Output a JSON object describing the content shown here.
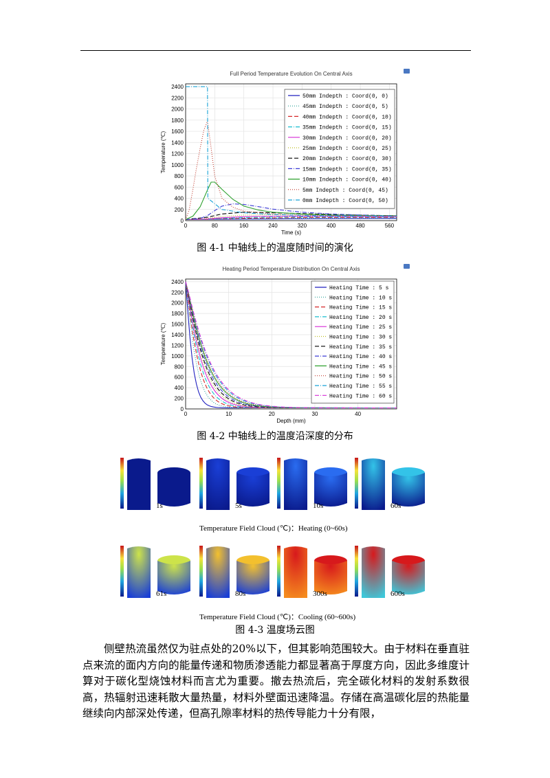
{
  "figure1": {
    "caption": "图 4-1  中轴线上的温度随时间的演化",
    "chart_data": {
      "type": "line",
      "title": "Full Period Temperature Evolution On Central Axis",
      "xlabel": "Time (s)",
      "ylabel": "Temperature (℃)",
      "xlim": [
        0,
        580
      ],
      "ylim": [
        0,
        2450
      ],
      "xticks": [
        0,
        80,
        160,
        240,
        320,
        400,
        480,
        560
      ],
      "yticks": [
        0,
        200,
        400,
        600,
        800,
        1000,
        1200,
        1400,
        1600,
        1800,
        2000,
        2200,
        2400
      ],
      "grid": true,
      "legend_position": "top-right",
      "series": [
        {
          "name": "50mm Indepth : Coord(0, 0)",
          "color": "#1f1fbf",
          "dash": "",
          "x": [
            0,
            60,
            100,
            160,
            240,
            320,
            400,
            480,
            580
          ],
          "y": [
            20,
            22,
            24,
            27,
            30,
            33,
            36,
            38,
            40
          ]
        },
        {
          "name": "45mm Indepth : Coord(0, 5)",
          "color": "#2aa198",
          "dash": "1,2",
          "x": [
            0,
            60,
            100,
            160,
            240,
            320,
            400,
            480,
            580
          ],
          "y": [
            20,
            24,
            28,
            33,
            38,
            42,
            45,
            47,
            48
          ]
        },
        {
          "name": "40mm Indepth : Coord(0, 10)",
          "color": "#d62728",
          "dash": "6,3",
          "x": [
            0,
            60,
            100,
            160,
            240,
            320,
            400,
            480,
            580
          ],
          "y": [
            20,
            26,
            33,
            42,
            50,
            55,
            57,
            58,
            58
          ]
        },
        {
          "name": "35mm Indepth : Coord(0, 15)",
          "color": "#17becf",
          "dash": "6,2,1,2",
          "x": [
            0,
            60,
            100,
            160,
            240,
            320,
            400,
            480,
            580
          ],
          "y": [
            20,
            28,
            40,
            55,
            63,
            66,
            67,
            66,
            64
          ]
        },
        {
          "name": "30mm Indepth : Coord(0, 20)",
          "color": "#d62ad6",
          "dash": "",
          "x": [
            0,
            60,
            100,
            160,
            240,
            320,
            400,
            480,
            580
          ],
          "y": [
            20,
            32,
            52,
            72,
            80,
            80,
            78,
            75,
            72
          ]
        },
        {
          "name": "25mm Indepth : Coord(0, 25)",
          "color": "#bcbd22",
          "dash": "1,2",
          "x": [
            0,
            60,
            100,
            160,
            240,
            320,
            400,
            480,
            580
          ],
          "y": [
            20,
            40,
            75,
            100,
            103,
            98,
            92,
            86,
            80
          ]
        },
        {
          "name": "20mm Indepth : Coord(0, 30)",
          "color": "#000000",
          "dash": "6,3",
          "x": [
            0,
            60,
            100,
            160,
            240,
            320,
            400,
            480,
            580
          ],
          "y": [
            20,
            60,
            120,
            150,
            140,
            125,
            110,
            98,
            88
          ]
        },
        {
          "name": "15mm Indepth : Coord(0, 35)",
          "color": "#3b3bd6",
          "dash": "6,2,1,2",
          "x": [
            0,
            40,
            60,
            80,
            100,
            130,
            160,
            200,
            240,
            320,
            400,
            480,
            580
          ],
          "y": [
            20,
            40,
            90,
            180,
            260,
            300,
            290,
            250,
            205,
            150,
            120,
            100,
            88
          ]
        },
        {
          "name": "10mm Indepth : Coord(0, 40)",
          "color": "#2ca02c",
          "dash": "",
          "x": [
            0,
            20,
            40,
            60,
            70,
            80,
            100,
            130,
            160,
            200,
            240,
            320,
            400,
            480,
            580
          ],
          "y": [
            20,
            80,
            250,
            550,
            690,
            690,
            560,
            380,
            260,
            190,
            150,
            118,
            100,
            92,
            86
          ]
        },
        {
          "name": "5mm Indepth : Coord(0, 45)",
          "color": "#c0392b",
          "dash": "1,2",
          "x": [
            0,
            10,
            20,
            30,
            40,
            50,
            60,
            70,
            80,
            100,
            130,
            160,
            240,
            320,
            400,
            480,
            580
          ],
          "y": [
            20,
            200,
            560,
            950,
            1300,
            1620,
            1780,
            1300,
            800,
            400,
            240,
            170,
            120,
            100,
            92,
            88,
            85
          ]
        },
        {
          "name": "0mm Indepth : Coord(0, 50)",
          "color": "#17a2d6",
          "dash": "6,2,1,2",
          "x": [
            0,
            60,
            61,
            100,
            160,
            240,
            320,
            400,
            480,
            580
          ],
          "y": [
            2400,
            2400,
            400,
            200,
            140,
            110,
            95,
            88,
            85,
            82
          ]
        }
      ]
    }
  },
  "figure2": {
    "caption": "图 4-2  中轴线上的温度沿深度的分布",
    "chart_data": {
      "type": "line",
      "title": "Heating Period Temperature Distribution On Central Axis",
      "xlabel": "Depth (mm)",
      "ylabel": "Temperature (℃)",
      "xlim": [
        0,
        49
      ],
      "ylim": [
        0,
        2450
      ],
      "xticks": [
        0,
        10,
        20,
        30,
        40
      ],
      "yticks": [
        0,
        200,
        400,
        600,
        800,
        1000,
        1200,
        1400,
        1600,
        1800,
        2000,
        2200,
        2400
      ],
      "grid": true,
      "legend_position": "top-right",
      "series": [
        {
          "name": "Heating Time : 5 s",
          "color": "#1f1fbf",
          "dash": "",
          "decay": 1.6
        },
        {
          "name": "Heating Time : 10 s",
          "color": "#2aa198",
          "dash": "1,2",
          "decay": 2.4
        },
        {
          "name": "Heating Time : 15 s",
          "color": "#d62728",
          "dash": "6,3",
          "decay": 2.9
        },
        {
          "name": "Heating Time : 20 s",
          "color": "#17becf",
          "dash": "6,2,1,2",
          "decay": 3.3
        },
        {
          "name": "Heating Time : 25 s",
          "color": "#d62ad6",
          "dash": "",
          "decay": 3.7
        },
        {
          "name": "Heating Time : 30 s",
          "color": "#bcbd22",
          "dash": "1,2",
          "decay": 4.0
        },
        {
          "name": "Heating Time : 35 s",
          "color": "#000000",
          "dash": "6,3",
          "decay": 4.3
        },
        {
          "name": "Heating Time : 40 s",
          "color": "#3b3bd6",
          "dash": "6,2,1,2",
          "decay": 4.6
        },
        {
          "name": "Heating Time : 45 s",
          "color": "#2ca02c",
          "dash": "",
          "decay": 4.9
        },
        {
          "name": "Heating Time : 50 s",
          "color": "#c0392b",
          "dash": "1,2",
          "decay": 5.1
        },
        {
          "name": "Heating Time : 55 s",
          "color": "#17a2d6",
          "dash": "6,2,1,2",
          "decay": 5.4
        },
        {
          "name": "Heating Time : 60 s",
          "color": "#d62ad6",
          "dash": "6,2,1,2",
          "decay": 5.6
        }
      ]
    }
  },
  "figure3": {
    "caption": "图 4-3  温度场云图",
    "heating_caption": "Temperature Field Cloud (℃)：Heating (0~60s)",
    "cooling_caption": "Temperature Field Cloud (℃)：Cooling (60~600s)",
    "heating": [
      {
        "label": "1s",
        "colors": [
          "#0a1a8c",
          "#0a1a8c"
        ]
      },
      {
        "label": "5s",
        "colors": [
          "#0a1a8c",
          "#1a3fd6"
        ]
      },
      {
        "label": "10s",
        "colors": [
          "#0a1a8c",
          "#2a6cf0"
        ]
      },
      {
        "label": "60s",
        "colors": [
          "#0a1a8c",
          "#33c3e8"
        ]
      }
    ],
    "cooling": [
      {
        "label": "61s",
        "colors": [
          "#1a3fd6",
          "#cde34a"
        ]
      },
      {
        "label": "80s",
        "colors": [
          "#1a3fd6",
          "#f3c02e"
        ]
      },
      {
        "label": "300s",
        "colors": [
          "#f58b1e",
          "#d7191c"
        ]
      },
      {
        "label": "600s",
        "colors": [
          "#3ec7d9",
          "#d7191c"
        ]
      }
    ]
  },
  "body_text": "侧壁热流虽然仅为驻点处的20%以下，但其影响范围较大。由于材料在垂直驻点来流的面内方向的能量传递和物质渗透能力都显著高于厚度方向，因此多维度计算对于碳化型烧蚀材料而言尤为重要。撤去热流后，完全碳化材料的发射系数很高，热辐射迅速耗散大量热量，材料外壁面迅速降温。存储在高温碳化层的热能量继续向内部深处传递，但高孔隙率材料的热传导能力十分有限，"
}
